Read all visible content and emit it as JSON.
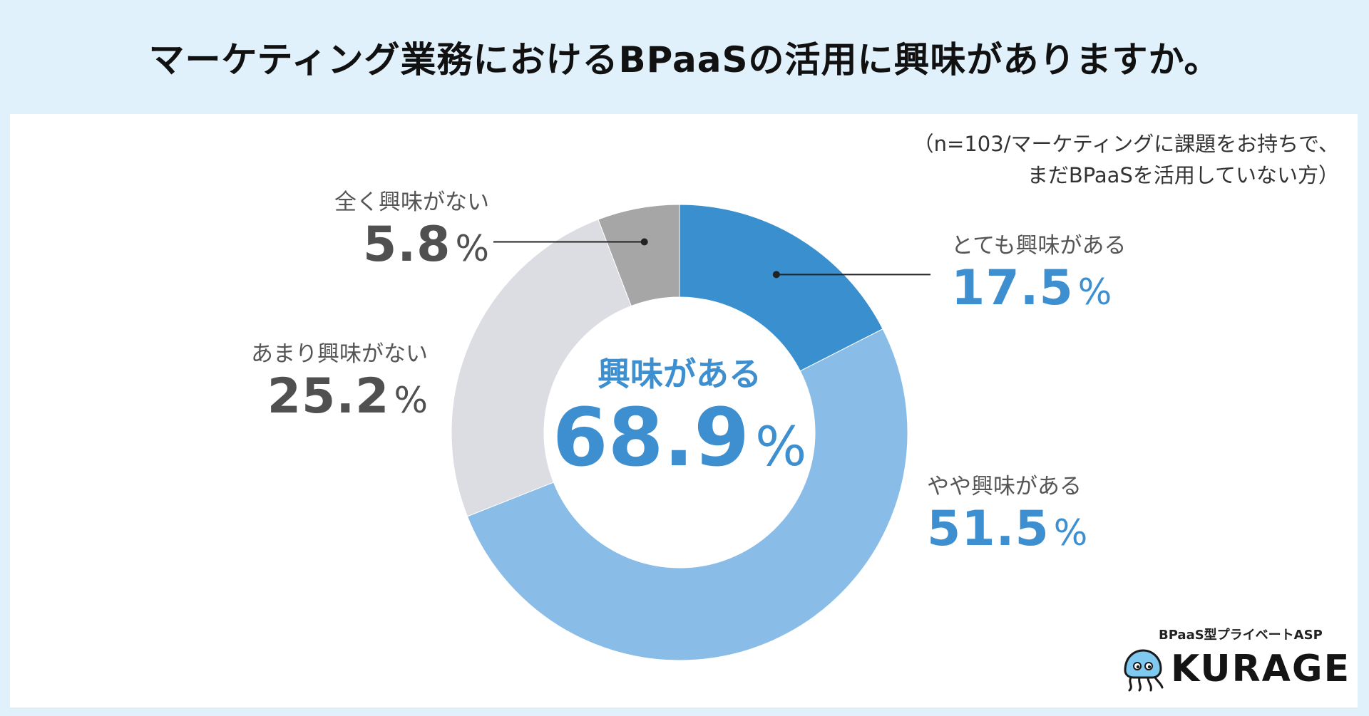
{
  "title": "マーケティング業務におけるBPaaSの活用に興味がありますか。",
  "note": {
    "line1": "（n=103/マーケティングに課題をお持ちで、",
    "line2": "まだBPaaSを活用していない方）"
  },
  "center": {
    "label": "興味がある",
    "value": "68.9",
    "unit": "%"
  },
  "colors": {
    "background": "#e1f1fb",
    "accent": "#3d8fcf"
  },
  "chart_data": {
    "type": "pie",
    "donut": true,
    "categories": [
      "とても興味がある",
      "やや興味がある",
      "あまり興味がない",
      "全く興味がない"
    ],
    "values": [
      17.5,
      51.5,
      25.2,
      5.8
    ],
    "unit": "%",
    "colors": [
      "#3a8fce",
      "#89bde8",
      "#dcdde3",
      "#a6a6a6"
    ],
    "label_colors": [
      "#3d8fcf",
      "#3d8fcf",
      "#505050",
      "#505050"
    ]
  },
  "logo": {
    "tagline": "BPaaS型プライベートASP",
    "wordmark": "KURAGE",
    "icon": "jellyfish-mascot-icon"
  }
}
